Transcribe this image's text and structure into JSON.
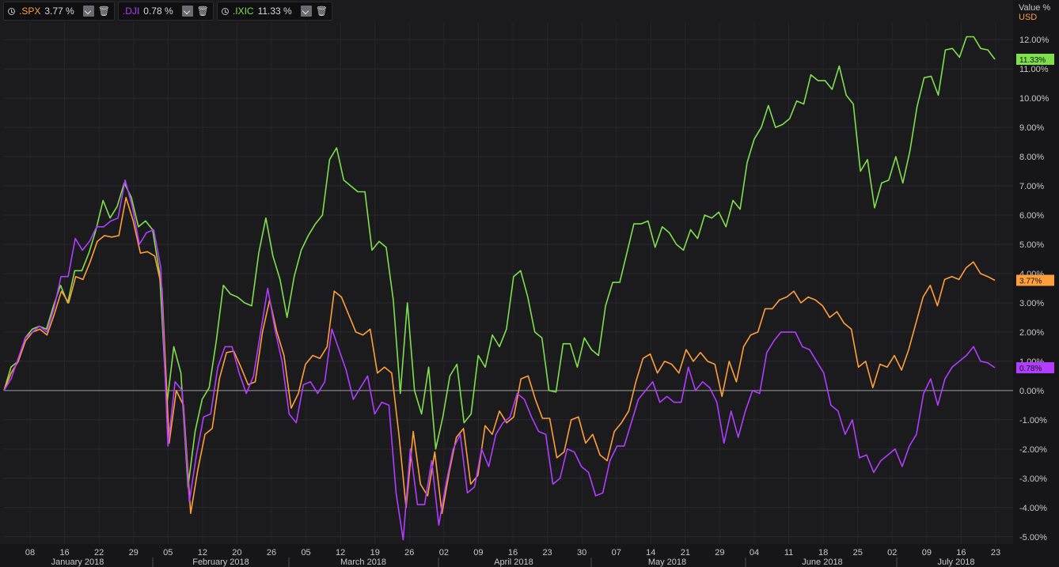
{
  "legend": [
    {
      "symbol": ".SPX",
      "value": "3.77 %",
      "color": "#ff9f3a"
    },
    {
      "symbol": ".DJI",
      "value": "0.78 %",
      "color": "#b23cff"
    },
    {
      "symbol": ".IXIC",
      "value": "11.33 %",
      "color": "#7fe04c"
    }
  ],
  "icons": {
    "clock": "clock-icon",
    "dropdown": "chevron-down-icon",
    "delete": "trash-icon"
  },
  "chart_data": {
    "type": "line",
    "yaxis_title": "Value %",
    "currency": "USD",
    "ylim": [
      -5.25,
      12.6
    ],
    "yticks": [
      "12.00%",
      "11.00%",
      "10.00%",
      "9.00%",
      "8.00%",
      "7.00%",
      "6.00%",
      "5.00%",
      "4.00%",
      "3.00%",
      "2.00%",
      "1.00%",
      "0.00%",
      "-1.00%",
      "-2.00%",
      "-3.00%",
      "-4.00%",
      "-5.00%"
    ],
    "ytick_values": [
      12,
      11,
      10,
      9,
      8,
      7,
      6,
      5,
      4,
      3,
      2,
      1,
      0,
      -1,
      -2,
      -3,
      -4,
      -5
    ],
    "grid": true,
    "x_day_labels": [
      "08",
      "16",
      "22",
      "29",
      "05",
      "12",
      "20",
      "26",
      "05",
      "12",
      "19",
      "26",
      "02",
      "09",
      "16",
      "23",
      "30",
      "07",
      "14",
      "21",
      "29",
      "04",
      "11",
      "18",
      "25",
      "02",
      "09",
      "16",
      "23"
    ],
    "month_labels": [
      "January 2018",
      "February 2018",
      "March 2018",
      "April 2018",
      "May 2018",
      "June 2018",
      "July 2018"
    ],
    "series": [
      {
        "name": ".IXIC",
        "color": "#7fe04c",
        "badge": "11.33%",
        "values": [
          0,
          0.8,
          1.0,
          1.8,
          2.1,
          2.2,
          2.1,
          2.9,
          3.6,
          3.0,
          4.1,
          4.1,
          4.7,
          5.5,
          6.5,
          5.9,
          6.3,
          7.1,
          6.6,
          5.6,
          5.8,
          5.5,
          4.0,
          -0.5,
          1.5,
          0.6,
          -3.3,
          -1.4,
          -0.3,
          0.1,
          1.7,
          3.6,
          3.3,
          3.2,
          3.0,
          2.9,
          4.7,
          5.9,
          4.6,
          3.8,
          2.5,
          3.9,
          4.8,
          5.3,
          5.7,
          6.0,
          7.9,
          8.3,
          7.2,
          7.0,
          6.8,
          6.8,
          4.8,
          5.1,
          4.9,
          3.1,
          -0.1,
          3.0,
          0.0,
          -0.8,
          0.8,
          -2.0,
          -0.9,
          0.5,
          0.9,
          -1.1,
          -0.8,
          1.2,
          0.8,
          1.9,
          1.5,
          2.1,
          3.9,
          4.1,
          3.2,
          2.0,
          1.8,
          0.0,
          -0.05,
          1.6,
          1.6,
          0.8,
          1.8,
          1.4,
          1.2,
          2.9,
          3.7,
          3.7,
          4.7,
          5.7,
          5.7,
          5.8,
          4.9,
          5.6,
          5.4,
          5.0,
          4.8,
          5.5,
          5.2,
          6.0,
          5.9,
          6.1,
          5.6,
          6.5,
          6.2,
          7.8,
          8.6,
          9.0,
          9.75,
          9.0,
          9.1,
          9.3,
          9.9,
          9.8,
          10.8,
          10.6,
          10.6,
          10.3,
          11.1,
          10.1,
          9.8,
          7.5,
          7.9,
          6.25,
          7.1,
          7.2,
          8.0,
          7.1,
          8.2,
          9.7,
          10.7,
          10.75,
          10.1,
          11.65,
          11.7,
          11.4,
          12.1,
          12.1,
          11.7,
          11.65,
          11.33
        ]
      },
      {
        "name": ".SPX",
        "color": "#ff9f3a",
        "badge": "3.77%",
        "values": [
          0,
          0.6,
          1.0,
          1.7,
          2.0,
          2.1,
          1.9,
          2.6,
          3.4,
          3.0,
          3.9,
          3.8,
          4.4,
          5.1,
          5.3,
          5.25,
          5.3,
          6.6,
          5.8,
          4.7,
          4.75,
          4.6,
          3.5,
          -1.8,
          0.0,
          -0.5,
          -4.2,
          -2.7,
          -1.5,
          -1.3,
          0.4,
          1.3,
          1.35,
          0.8,
          0.2,
          0.3,
          2.0,
          3.1,
          2.0,
          1.2,
          -0.6,
          -0.1,
          0.9,
          1.2,
          1.1,
          1.5,
          3.4,
          3.2,
          2.6,
          2.0,
          1.9,
          2.1,
          0.6,
          0.8,
          0.6,
          -1.5,
          -4.0,
          -1.4,
          -3.2,
          -3.6,
          -2.1,
          -4.2,
          -2.8,
          -1.6,
          -1.3,
          -3.2,
          -2.9,
          -1.2,
          -1.5,
          -0.7,
          -1.1,
          -0.9,
          0.4,
          0.5,
          -0.3,
          -0.95,
          -0.95,
          -2.3,
          -2.1,
          -1.0,
          -0.9,
          -1.8,
          -1.5,
          -2.2,
          -2.4,
          -1.4,
          -1.1,
          -0.7,
          0.3,
          1.1,
          1.25,
          0.6,
          1.0,
          0.9,
          0.6,
          1.4,
          1.0,
          1.3,
          1.0,
          0.9,
          -0.2,
          1.0,
          0.3,
          1.5,
          1.9,
          2.0,
          2.8,
          2.8,
          3.1,
          3.2,
          3.4,
          3.0,
          3.2,
          3.1,
          2.9,
          2.5,
          2.7,
          2.3,
          2.1,
          0.8,
          1.0,
          0.1,
          0.9,
          0.8,
          1.2,
          0.7,
          1.4,
          2.3,
          3.2,
          3.6,
          2.9,
          3.8,
          3.9,
          3.8,
          4.2,
          4.4,
          4.0,
          3.9,
          3.77
        ]
      },
      {
        "name": ".DJI",
        "color": "#b23cff",
        "badge": "0.78%",
        "values": [
          0,
          0.4,
          1.1,
          1.8,
          2.0,
          2.2,
          2.0,
          2.8,
          3.9,
          3.9,
          5.2,
          4.8,
          5.1,
          5.6,
          5.6,
          5.8,
          5.9,
          7.2,
          6.3,
          5.0,
          5.4,
          5.5,
          4.2,
          -1.9,
          0.3,
          0.0,
          -3.8,
          -2.2,
          -0.9,
          -0.8,
          0.8,
          1.5,
          1.5,
          0.6,
          -0.1,
          0.5,
          2.0,
          3.5,
          2.1,
          1.0,
          -0.8,
          -1.1,
          0.2,
          0.3,
          -0.1,
          0.3,
          2.1,
          1.4,
          0.7,
          -0.3,
          0.1,
          0.5,
          -0.8,
          -0.4,
          -0.5,
          -3.5,
          -5.1,
          -2.0,
          -3.9,
          -3.9,
          -2.4,
          -4.6,
          -3.2,
          -2.0,
          -1.5,
          -3.5,
          -3.3,
          -2.0,
          -2.6,
          -1.5,
          -1.1,
          -0.9,
          -0.1,
          -0.3,
          -0.9,
          -1.4,
          -1.5,
          -3.2,
          -3.0,
          -2.0,
          -2.1,
          -2.6,
          -2.8,
          -3.6,
          -3.5,
          -2.4,
          -1.9,
          -1.9,
          -1.1,
          -0.3,
          0.0,
          0.3,
          -0.4,
          -0.2,
          -0.4,
          -0.4,
          0.8,
          0.0,
          0.3,
          0.1,
          -0.4,
          -1.8,
          -0.7,
          -1.6,
          -0.7,
          0.0,
          -0.1,
          1.3,
          1.7,
          2.0,
          2.0,
          2.0,
          1.5,
          1.4,
          1.0,
          0.6,
          -0.5,
          -0.7,
          -1.5,
          -1.0,
          -2.3,
          -2.2,
          -2.8,
          -2.4,
          -2.2,
          -2.0,
          -2.6,
          -1.9,
          -1.5,
          -0.1,
          0.4,
          -0.5,
          0.4,
          0.8,
          1.0,
          1.2,
          1.5,
          1.0,
          0.95,
          0.78
        ]
      }
    ]
  }
}
